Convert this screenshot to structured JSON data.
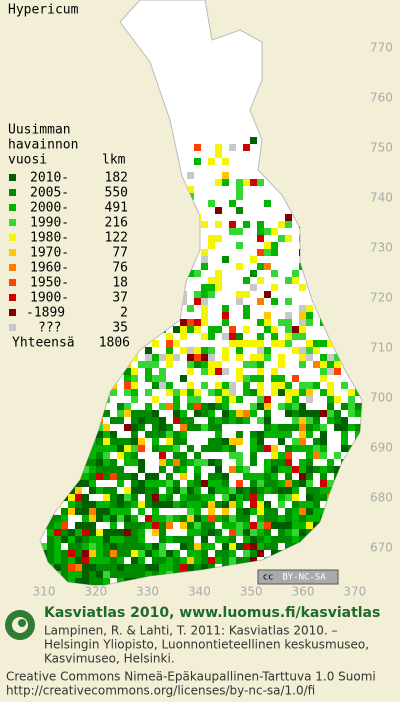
{
  "title": "Hypericum",
  "legend": {
    "header": [
      "Uusimman",
      "havainnon",
      "vuosi"
    ],
    "count_header": "lkm",
    "rows": [
      {
        "label": "2010-",
        "count": 182,
        "color": "#005f00"
      },
      {
        "label": "2005-",
        "count": 550,
        "color": "#008a00"
      },
      {
        "label": "2000-",
        "count": 491,
        "color": "#00b400"
      },
      {
        "label": "1990-",
        "count": 216,
        "color": "#33d633"
      },
      {
        "label": "1980-",
        "count": 122,
        "color": "#f5f500"
      },
      {
        "label": "1970-",
        "count": 77,
        "color": "#ffc800"
      },
      {
        "label": "1960-",
        "count": 76,
        "color": "#ff8000"
      },
      {
        "label": "1950-",
        "count": 18,
        "color": "#ff4000"
      },
      {
        "label": "1900-",
        "count": 37,
        "color": "#d00000"
      },
      {
        "label": "-1899",
        "count": 2,
        "color": "#800000"
      },
      {
        "label": "???",
        "count": 35,
        "color": "#c8c8c8"
      }
    ],
    "total_label": "Yhteensä",
    "total": 1806
  },
  "map": {
    "y_labels": [
      770,
      760,
      750,
      740,
      730,
      720,
      710,
      700,
      690,
      680,
      670
    ],
    "x_labels": [
      310,
      320,
      330,
      340,
      350,
      360,
      370
    ],
    "license_badge": {
      "cc": "cc",
      "text": "BY-NC-SA"
    }
  },
  "footer": {
    "heading": "Kasviatlas 2010, www.luomus.fi/kasviatlas",
    "citation": [
      "Lampinen, R. & Lahti, T. 2011: Kasviatlas 2010. –",
      "Helsingin Yliopisto, Luonnontieteellinen keskusmuseo,",
      "Kasvimuseo, Helsinki."
    ],
    "license": [
      "Creative Commons Nimeä-Epäkaupallinen-Tarttuva 1.0 Suomi",
      "http://creativecommons.org/licenses/by-nc-sa/1.0/fi"
    ]
  }
}
